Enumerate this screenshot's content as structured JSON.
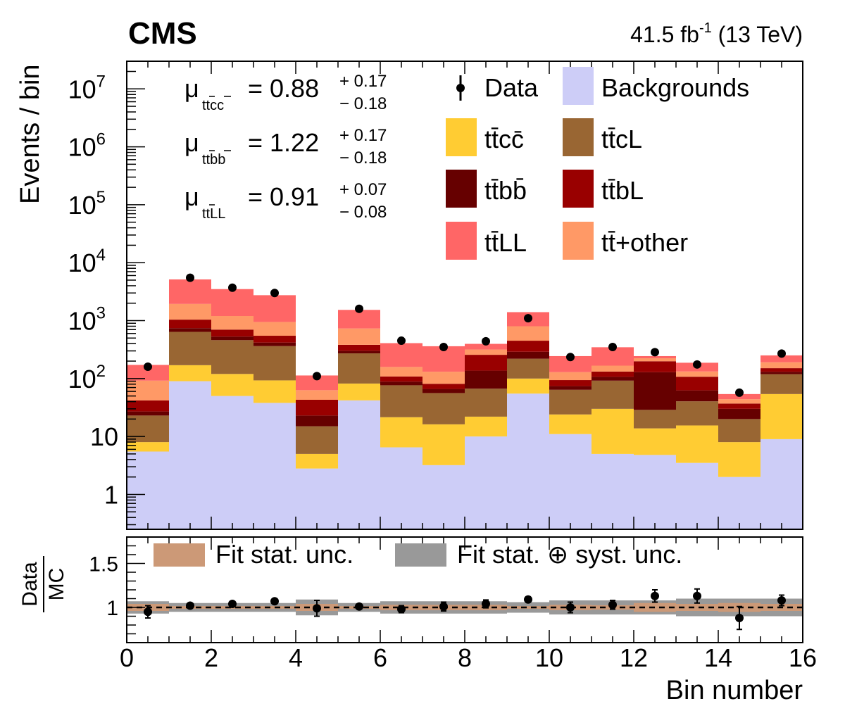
{
  "header": {
    "experiment": "CMS",
    "lumi_value": "41.5 fb",
    "lumi_exp": "-1",
    "energy": "(13 TeV)"
  },
  "mu_box": [
    {
      "sym": "μ",
      "sub_a": "tt",
      "sub_b": "cc",
      "eq": "= 0.88",
      "up": "+ 0.17",
      "dn": "− 0.18"
    },
    {
      "sym": "μ",
      "sub_a": "tt",
      "sub_b": "bb",
      "eq": "= 1.22",
      "up": "+ 0.17",
      "dn": "− 0.18"
    },
    {
      "sym": "μ",
      "sub_a": "tt",
      "sub_b": "LL",
      "eq": "= 0.91",
      "up": "+ 0.07",
      "dn": "− 0.08"
    }
  ],
  "legend": [
    {
      "key": "data",
      "label": "Data",
      "color": "#000000"
    },
    {
      "key": "bkg",
      "label": "Backgrounds",
      "color": "#cdcdf7"
    },
    {
      "key": "ttcc",
      "label": "tt̄cc̄",
      "color": "#ffcc33"
    },
    {
      "key": "ttcL",
      "label": "tt̄cL",
      "color": "#996633"
    },
    {
      "key": "ttbb",
      "label": "tt̄bb̄",
      "color": "#660000"
    },
    {
      "key": "ttbL",
      "label": "tt̄bL",
      "color": "#990000"
    },
    {
      "key": "ttLL",
      "label": "tt̄LL",
      "color": "#ff6666"
    },
    {
      "key": "ttother",
      "label": "tt̄+other",
      "color": "#ff9966"
    }
  ],
  "ratio_legend": [
    {
      "label": "Fit stat. unc.",
      "color": "#cc9977"
    },
    {
      "label": "Fit stat. ⊕ syst. unc.",
      "color": "#999999"
    }
  ],
  "chart_data": {
    "type": "bar",
    "stacked": true,
    "log_y": true,
    "x_bins": [
      0,
      1,
      2,
      3,
      4,
      5,
      6,
      7,
      8,
      9,
      10,
      11,
      12,
      13,
      14,
      15,
      16
    ],
    "xlim": [
      0,
      16
    ],
    "ylim": [
      0.25,
      30000000
    ],
    "xlabel": "Bin number",
    "ylabel": "Events / bin",
    "x_ticks": [
      0,
      2,
      4,
      6,
      8,
      10,
      12,
      14,
      16
    ],
    "y_ticks": [
      {
        "value": 1,
        "base": "1",
        "exp": ""
      },
      {
        "value": 10,
        "base": "10",
        "exp": ""
      },
      {
        "value": 100,
        "base": "10",
        "exp": "2"
      },
      {
        "value": 1000,
        "base": "10",
        "exp": "3"
      },
      {
        "value": 10000,
        "base": "10",
        "exp": "4"
      },
      {
        "value": 100000,
        "base": "10",
        "exp": "5"
      },
      {
        "value": 1000000,
        "base": "10",
        "exp": "6"
      },
      {
        "value": 10000000,
        "base": "10",
        "exp": "7"
      }
    ],
    "series": [
      {
        "name": "Backgrounds",
        "key": "bkg",
        "color": "#cdcdf7",
        "values": [
          5.5,
          90,
          50,
          38,
          2.8,
          42,
          6.5,
          3.2,
          10,
          55,
          11,
          5,
          4.8,
          3.5,
          2,
          9
        ]
      },
      {
        "name": "tt̄cc̄",
        "key": "ttcc",
        "color": "#ffcc33",
        "values": [
          2.5,
          80,
          70,
          55,
          2.2,
          40,
          15,
          13,
          12,
          45,
          13,
          25,
          9,
          12,
          6,
          45
        ]
      },
      {
        "name": "tt̄cL",
        "key": "ttcL",
        "color": "#996633",
        "values": [
          15,
          470,
          340,
          270,
          10,
          190,
          55,
          40,
          45,
          120,
          40,
          62,
          15,
          25,
          12,
          65
        ]
      },
      {
        "name": "tt̄bb̄",
        "key": "ttbb",
        "color": "#660000",
        "values": [
          4,
          100,
          70,
          55,
          8,
          30,
          12,
          10,
          70,
          70,
          10,
          15,
          100,
          22,
          10,
          12
        ]
      },
      {
        "name": "tt̄bL",
        "key": "ttbL",
        "color": "#990000",
        "values": [
          15,
          300,
          170,
          130,
          20,
          80,
          20,
          15,
          120,
          160,
          20,
          25,
          70,
          45,
          7,
          20
        ]
      },
      {
        "name": "tt̄+other",
        "key": "ttother",
        "color": "#ff9966",
        "values": [
          50,
          900,
          500,
          400,
          20,
          350,
          50,
          50,
          60,
          350,
          35,
          35,
          25,
          25,
          7,
          40
        ]
      },
      {
        "name": "tt̄LL",
        "key": "ttLL",
        "color": "#ff6666",
        "values": [
          80,
          3200,
          2300,
          1800,
          50,
          800,
          250,
          230,
          80,
          600,
          115,
          180,
          20,
          55,
          10,
          60
        ]
      }
    ],
    "data_points": [
      {
        "x": 0.5,
        "y": 160
      },
      {
        "x": 1.5,
        "y": 5500
      },
      {
        "x": 2.5,
        "y": 3700
      },
      {
        "x": 3.5,
        "y": 3000
      },
      {
        "x": 4.5,
        "y": 110
      },
      {
        "x": 5.5,
        "y": 1600
      },
      {
        "x": 6.5,
        "y": 450
      },
      {
        "x": 7.5,
        "y": 350
      },
      {
        "x": 8.5,
        "y": 440
      },
      {
        "x": 9.5,
        "y": 1100
      },
      {
        "x": 10.5,
        "y": 235
      },
      {
        "x": 11.5,
        "y": 350
      },
      {
        "x": 12.5,
        "y": 285
      },
      {
        "x": 13.5,
        "y": 175
      },
      {
        "x": 14.5,
        "y": 57
      },
      {
        "x": 15.5,
        "y": 270
      }
    ],
    "ratio": {
      "ylabel_num": "Data",
      "ylabel_den": "MC",
      "ylim": [
        0.6,
        1.8
      ],
      "y_ticks": [
        {
          "value": 1,
          "label": "1"
        },
        {
          "value": 1.5,
          "label": "1.5"
        }
      ],
      "reference": 1.0,
      "values": [
        0.95,
        1.02,
        1.04,
        1.07,
        0.99,
        1.01,
        0.98,
        1.01,
        1.04,
        1.09,
        1.0,
        1.03,
        1.13,
        1.13,
        0.88,
        1.08
      ],
      "errors": [
        0.07,
        0.015,
        0.02,
        0.02,
        0.09,
        0.025,
        0.04,
        0.05,
        0.045,
        0.03,
        0.06,
        0.05,
        0.07,
        0.08,
        0.13,
        0.06
      ],
      "stat_band": [
        0.04,
        0.015,
        0.015,
        0.015,
        0.04,
        0.015,
        0.03,
        0.03,
        0.03,
        0.015,
        0.03,
        0.025,
        0.05,
        0.04,
        0.05,
        0.04
      ],
      "total_band": [
        0.07,
        0.05,
        0.05,
        0.05,
        0.09,
        0.05,
        0.07,
        0.07,
        0.07,
        0.06,
        0.08,
        0.08,
        0.08,
        0.1,
        0.1,
        0.1
      ]
    }
  }
}
